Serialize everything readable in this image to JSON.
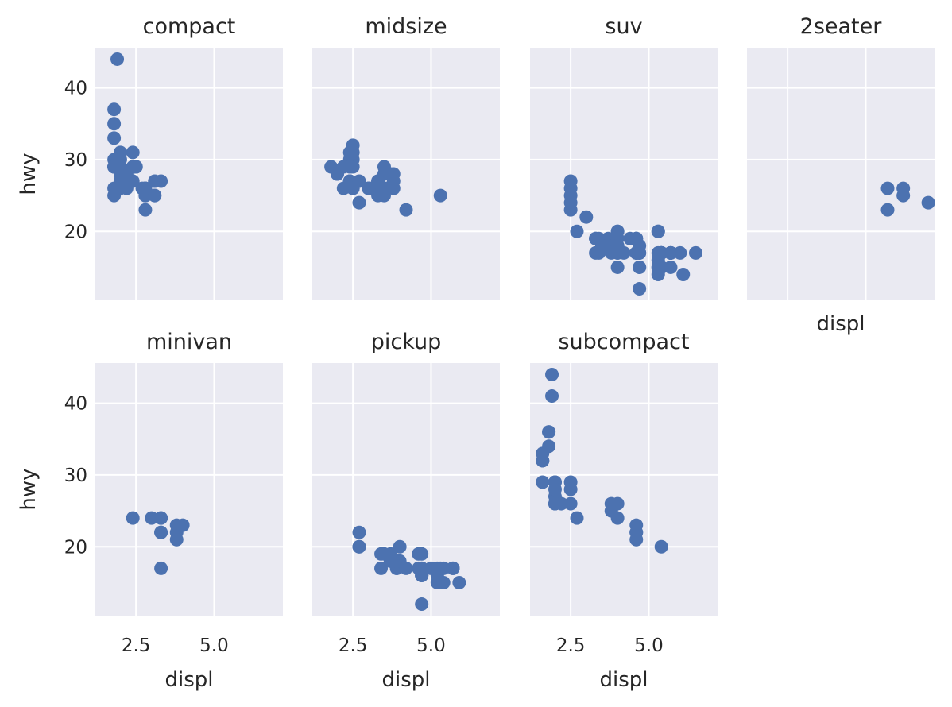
{
  "chart_data": {
    "type": "scatter",
    "facet_by": "class",
    "xlabel": "displ",
    "ylabel": "hwy",
    "xlim": [
      1.2,
      7.2
    ],
    "ylim": [
      10.4,
      45.6
    ],
    "xticks": [
      2.5,
      5.0
    ],
    "yticks": [
      20,
      30,
      40
    ],
    "xtick_labels": [
      "2.5",
      "5.0"
    ],
    "ytick_labels": [
      "20",
      "30",
      "40"
    ],
    "grid": true,
    "colors": {
      "panel_bg": "#eaeaf2",
      "grid": "#ffffff",
      "point": "#4c72b0",
      "text": "#262626"
    },
    "facets": [
      {
        "title": "compact",
        "points": [
          [
            1.8,
            29
          ],
          [
            1.8,
            29
          ],
          [
            2.0,
            31
          ],
          [
            2.0,
            30
          ],
          [
            2.8,
            26
          ],
          [
            2.8,
            26
          ],
          [
            3.1,
            27
          ],
          [
            1.8,
            26
          ],
          [
            1.8,
            25
          ],
          [
            2.0,
            28
          ],
          [
            2.0,
            27
          ],
          [
            2.8,
            25
          ],
          [
            2.8,
            25
          ],
          [
            3.1,
            25
          ],
          [
            3.1,
            25
          ],
          [
            2.2,
            26
          ],
          [
            2.2,
            27
          ],
          [
            2.4,
            31
          ],
          [
            2.4,
            29
          ],
          [
            2.8,
            26
          ],
          [
            1.9,
            44
          ],
          [
            2.0,
            29
          ],
          [
            2.0,
            26
          ],
          [
            2.0,
            29
          ],
          [
            2.0,
            29
          ],
          [
            2.5,
            29
          ],
          [
            2.5,
            29
          ],
          [
            2.8,
            23
          ],
          [
            1.8,
            37
          ],
          [
            1.8,
            35
          ],
          [
            1.8,
            33
          ],
          [
            1.8,
            30
          ],
          [
            1.8,
            29
          ],
          [
            2.0,
            28
          ],
          [
            2.0,
            27
          ],
          [
            3.3,
            27
          ],
          [
            2.4,
            27
          ],
          [
            2.5,
            29
          ],
          [
            2.7,
            26
          ],
          [
            2.2,
            28
          ]
        ]
      },
      {
        "title": "midsize",
        "points": [
          [
            2.4,
            27
          ],
          [
            2.4,
            30
          ],
          [
            3.1,
            26
          ],
          [
            3.5,
            29
          ],
          [
            3.6,
            26
          ],
          [
            2.4,
            31
          ],
          [
            3.0,
            26
          ],
          [
            3.3,
            27
          ],
          [
            3.3,
            26
          ],
          [
            3.3,
            25
          ],
          [
            3.5,
            28
          ],
          [
            3.8,
            26
          ],
          [
            3.8,
            28
          ],
          [
            3.8,
            27
          ],
          [
            5.3,
            25
          ],
          [
            2.5,
            32
          ],
          [
            2.5,
            30
          ],
          [
            2.5,
            31
          ],
          [
            2.5,
            26
          ],
          [
            2.7,
            24
          ],
          [
            3.0,
            26
          ],
          [
            3.5,
            25
          ],
          [
            3.5,
            26
          ],
          [
            4.2,
            23
          ],
          [
            2.2,
            26
          ],
          [
            2.4,
            27
          ],
          [
            3.0,
            26
          ],
          [
            2.0,
            28
          ],
          [
            2.2,
            29
          ],
          [
            1.8,
            29
          ],
          [
            2.0,
            28
          ],
          [
            2.5,
            26
          ],
          [
            2.5,
            29
          ],
          [
            2.7,
            27
          ],
          [
            3.3,
            27
          ],
          [
            3.7,
            28
          ],
          [
            2.4,
            29
          ]
        ]
      },
      {
        "title": "suv",
        "points": [
          [
            5.3,
            20
          ],
          [
            5.3,
            15
          ],
          [
            5.3,
            20
          ],
          [
            5.7,
            17
          ],
          [
            6.0,
            17
          ],
          [
            5.7,
            17
          ],
          [
            6.5,
            17
          ],
          [
            6.1,
            14
          ],
          [
            4.0,
            18
          ],
          [
            4.0,
            20
          ],
          [
            4.6,
            17
          ],
          [
            4.6,
            19
          ],
          [
            5.4,
            17
          ],
          [
            5.4,
            17
          ],
          [
            3.7,
            19
          ],
          [
            3.7,
            18
          ],
          [
            4.7,
            17
          ],
          [
            4.7,
            17
          ],
          [
            4.7,
            15
          ],
          [
            5.7,
            17
          ],
          [
            3.3,
            17
          ],
          [
            3.8,
            17
          ],
          [
            4.0,
            17
          ],
          [
            4.0,
            19
          ],
          [
            4.0,
            19
          ],
          [
            4.6,
            17
          ],
          [
            4.6,
            19
          ],
          [
            5.4,
            17
          ],
          [
            5.4,
            17
          ],
          [
            4.2,
            17
          ],
          [
            4.6,
            19
          ],
          [
            4.6,
            17
          ],
          [
            5.4,
            15
          ],
          [
            5.4,
            15
          ],
          [
            4.0,
            20
          ],
          [
            2.5,
            27
          ],
          [
            2.5,
            26
          ],
          [
            2.5,
            25
          ],
          [
            2.5,
            24
          ],
          [
            2.5,
            23
          ],
          [
            3.3,
            19
          ],
          [
            3.3,
            19
          ],
          [
            4.0,
            15
          ],
          [
            4.7,
            15
          ],
          [
            4.7,
            17
          ],
          [
            4.7,
            12
          ],
          [
            5.7,
            15
          ],
          [
            3.0,
            22
          ],
          [
            3.4,
            19
          ],
          [
            3.4,
            17
          ],
          [
            4.7,
            18
          ],
          [
            5.3,
            16
          ],
          [
            5.7,
            17
          ],
          [
            5.3,
            14
          ],
          [
            5.3,
            17
          ],
          [
            5.3,
            15
          ],
          [
            2.7,
            20
          ],
          [
            3.5,
            18
          ],
          [
            4.0,
            17
          ],
          [
            5.4,
            17
          ],
          [
            4.0,
            18
          ],
          [
            4.4,
            19
          ]
        ]
      },
      {
        "title": "2seater",
        "points": [
          [
            5.7,
            26
          ],
          [
            5.7,
            23
          ],
          [
            6.2,
            26
          ],
          [
            6.2,
            25
          ],
          [
            7.0,
            24
          ]
        ]
      },
      {
        "title": "minivan",
        "points": [
          [
            2.4,
            24
          ],
          [
            3.0,
            24
          ],
          [
            3.3,
            22
          ],
          [
            3.3,
            24
          ],
          [
            3.3,
            22
          ],
          [
            3.3,
            17
          ],
          [
            3.8,
            22
          ],
          [
            3.8,
            21
          ],
          [
            3.8,
            23
          ],
          [
            4.0,
            23
          ],
          [
            3.3,
            24
          ]
        ]
      },
      {
        "title": "pickup",
        "points": [
          [
            3.7,
            19
          ],
          [
            3.7,
            18
          ],
          [
            3.9,
            17
          ],
          [
            3.9,
            17
          ],
          [
            4.7,
            16
          ],
          [
            4.7,
            12
          ],
          [
            4.7,
            17
          ],
          [
            5.2,
            15
          ],
          [
            5.2,
            16
          ],
          [
            5.7,
            17
          ],
          [
            5.9,
            15
          ],
          [
            4.7,
            17
          ],
          [
            4.7,
            16
          ],
          [
            4.7,
            19
          ],
          [
            5.7,
            17
          ],
          [
            4.6,
            17
          ],
          [
            5.4,
            15
          ],
          [
            5.4,
            17
          ],
          [
            2.7,
            20
          ],
          [
            2.7,
            22
          ],
          [
            2.7,
            20
          ],
          [
            3.4,
            17
          ],
          [
            3.4,
            19
          ],
          [
            4.0,
            20
          ],
          [
            4.0,
            18
          ],
          [
            4.7,
            16
          ],
          [
            4.6,
            19
          ],
          [
            5.3,
            17
          ],
          [
            3.9,
            18
          ],
          [
            3.5,
            19
          ],
          [
            4.2,
            17
          ],
          [
            5.0,
            17
          ],
          [
            5.2,
            17
          ]
        ]
      },
      {
        "title": "subcompact",
        "points": [
          [
            3.8,
            26
          ],
          [
            3.8,
            25
          ],
          [
            4.0,
            26
          ],
          [
            4.0,
            24
          ],
          [
            4.6,
            21
          ],
          [
            4.6,
            22
          ],
          [
            4.6,
            23
          ],
          [
            4.6,
            22
          ],
          [
            5.4,
            20
          ],
          [
            1.6,
            33
          ],
          [
            1.6,
            32
          ],
          [
            1.6,
            32
          ],
          [
            1.6,
            29
          ],
          [
            1.6,
            32
          ],
          [
            1.8,
            34
          ],
          [
            1.8,
            36
          ],
          [
            1.8,
            36
          ],
          [
            2.0,
            29
          ],
          [
            2.0,
            26
          ],
          [
            2.0,
            27
          ],
          [
            2.5,
            29
          ],
          [
            2.5,
            28
          ],
          [
            1.9,
            44
          ],
          [
            1.9,
            41
          ],
          [
            2.0,
            29
          ],
          [
            2.0,
            26
          ],
          [
            2.5,
            26
          ],
          [
            2.7,
            24
          ],
          [
            2.2,
            26
          ],
          [
            2.0,
            28
          ],
          [
            2.0,
            26
          ]
        ]
      }
    ]
  }
}
